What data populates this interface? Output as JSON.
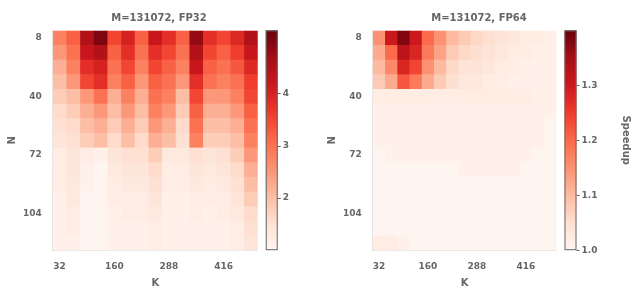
{
  "chart_data": [
    {
      "type": "heatmap",
      "title": "M=131072, FP32",
      "xlabel": "K",
      "ylabel": "N",
      "x": [
        32,
        64,
        96,
        128,
        160,
        192,
        224,
        256,
        288,
        320,
        352,
        384,
        416,
        448,
        480
      ],
      "y": [
        8,
        16,
        24,
        32,
        40,
        48,
        56,
        64,
        72,
        80,
        88,
        96,
        104,
        112,
        120
      ],
      "values": [
        [
          2.8,
          3.2,
          4.5,
          5.0,
          3.5,
          4.0,
          3.2,
          4.2,
          3.8,
          3.2,
          4.8,
          3.8,
          3.5,
          3.9,
          4.5
        ],
        [
          2.5,
          3.0,
          4.2,
          4.5,
          3.2,
          3.8,
          3.0,
          3.8,
          3.5,
          3.0,
          4.5,
          3.5,
          3.2,
          3.6,
          4.2
        ],
        [
          2.2,
          2.8,
          3.8,
          4.0,
          3.0,
          3.5,
          2.8,
          3.5,
          3.2,
          2.8,
          4.2,
          3.2,
          3.0,
          3.3,
          3.9
        ],
        [
          2.0,
          2.5,
          3.5,
          3.8,
          2.8,
          3.2,
          2.5,
          3.2,
          3.0,
          2.5,
          3.8,
          3.0,
          2.8,
          3.0,
          3.6
        ],
        [
          1.8,
          2.0,
          2.5,
          3.0,
          2.2,
          2.8,
          2.2,
          3.0,
          2.8,
          2.0,
          3.5,
          2.5,
          2.5,
          2.8,
          3.5
        ],
        [
          1.6,
          1.8,
          2.2,
          2.5,
          2.0,
          2.5,
          2.0,
          2.8,
          2.5,
          1.8,
          3.2,
          2.2,
          2.2,
          2.5,
          3.2
        ],
        [
          1.5,
          1.6,
          2.0,
          2.2,
          1.8,
          2.2,
          1.8,
          2.5,
          2.2,
          1.6,
          3.0,
          2.0,
          2.0,
          2.2,
          3.0
        ],
        [
          1.4,
          1.5,
          1.8,
          2.0,
          1.6,
          2.0,
          1.6,
          2.2,
          2.0,
          1.5,
          2.8,
          1.8,
          1.8,
          2.0,
          2.8
        ],
        [
          1.2,
          1.4,
          1.2,
          1.1,
          1.4,
          1.5,
          1.5,
          1.8,
          1.3,
          1.3,
          1.5,
          1.4,
          1.5,
          1.8,
          2.5
        ],
        [
          1.2,
          1.4,
          1.1,
          1.0,
          1.3,
          1.4,
          1.4,
          1.6,
          1.2,
          1.2,
          1.4,
          1.3,
          1.4,
          1.6,
          2.2
        ],
        [
          1.2,
          1.3,
          1.1,
          1.0,
          1.2,
          1.3,
          1.3,
          1.5,
          1.2,
          1.2,
          1.3,
          1.2,
          1.3,
          1.5,
          2.0
        ],
        [
          1.1,
          1.3,
          1.0,
          1.0,
          1.2,
          1.2,
          1.2,
          1.4,
          1.1,
          1.1,
          1.2,
          1.2,
          1.2,
          1.4,
          1.8
        ],
        [
          1.1,
          1.2,
          1.0,
          1.0,
          1.1,
          1.2,
          1.2,
          1.3,
          1.1,
          1.1,
          1.2,
          1.1,
          1.2,
          1.3,
          1.6
        ],
        [
          1.1,
          1.2,
          1.0,
          1.0,
          1.1,
          1.1,
          1.1,
          1.2,
          1.1,
          1.1,
          1.1,
          1.1,
          1.1,
          1.2,
          1.5
        ],
        [
          1.1,
          1.1,
          1.0,
          1.0,
          1.1,
          1.1,
          1.1,
          1.2,
          1.1,
          1.1,
          1.1,
          1.1,
          1.1,
          1.2,
          1.4
        ]
      ],
      "xlim": [
        16,
        496
      ],
      "xticks": [
        32,
        160,
        288,
        416
      ],
      "ylim": [
        124,
        4
      ],
      "yticks": [
        8,
        40,
        72,
        104
      ],
      "color": "Reds",
      "color_range": [
        1.0,
        5.2
      ],
      "color_ticks": [
        2,
        3,
        4
      ],
      "grid": false
    },
    {
      "type": "heatmap",
      "title": "M=131072, FP64",
      "xlabel": "K",
      "ylabel": "N",
      "x": [
        32,
        64,
        96,
        128,
        160,
        192,
        224,
        256,
        288,
        320,
        352,
        384,
        416,
        448,
        480
      ],
      "y": [
        8,
        16,
        24,
        32,
        40,
        48,
        56,
        64,
        72,
        80,
        88,
        96,
        104,
        112,
        120
      ],
      "values": [
        [
          1.15,
          1.3,
          1.38,
          1.3,
          1.2,
          1.15,
          1.1,
          1.08,
          1.06,
          1.05,
          1.04,
          1.03,
          1.02,
          1.02,
          1.01
        ],
        [
          1.12,
          1.2,
          1.32,
          1.28,
          1.18,
          1.13,
          1.08,
          1.06,
          1.05,
          1.04,
          1.03,
          1.02,
          1.02,
          1.01,
          1.01
        ],
        [
          1.1,
          1.16,
          1.28,
          1.24,
          1.15,
          1.1,
          1.06,
          1.04,
          1.04,
          1.03,
          1.02,
          1.02,
          1.01,
          1.01,
          1.01
        ],
        [
          1.08,
          1.12,
          1.22,
          1.18,
          1.12,
          1.08,
          1.05,
          1.03,
          1.03,
          1.02,
          1.02,
          1.01,
          1.01,
          1.01,
          1.01
        ],
        [
          1.02,
          1.02,
          1.02,
          1.02,
          1.02,
          1.02,
          1.02,
          1.02,
          1.02,
          1.02,
          1.02,
          1.02,
          1.02,
          1.01,
          1.01
        ],
        [
          1.01,
          1.01,
          1.01,
          1.01,
          1.01,
          1.01,
          1.01,
          1.01,
          1.01,
          1.01,
          1.01,
          1.01,
          1.01,
          1.01,
          1.01
        ],
        [
          1.01,
          1.01,
          1.01,
          1.01,
          1.01,
          1.01,
          1.01,
          1.01,
          1.01,
          1.01,
          1.01,
          1.01,
          1.01,
          1.01,
          1.0
        ],
        [
          1.01,
          1.01,
          1.01,
          1.01,
          1.01,
          1.01,
          1.01,
          1.01,
          1.01,
          1.01,
          1.01,
          1.01,
          1.01,
          1.01,
          1.0
        ],
        [
          1.0,
          1.01,
          1.01,
          1.01,
          1.01,
          1.01,
          1.01,
          1.01,
          1.01,
          1.01,
          1.01,
          1.01,
          1.01,
          1.0,
          1.0
        ],
        [
          1.0,
          1.0,
          1.0,
          1.0,
          1.0,
          1.0,
          1.0,
          1.01,
          1.01,
          1.01,
          1.01,
          1.01,
          1.0,
          1.0,
          1.0
        ],
        [
          1.0,
          1.0,
          1.0,
          1.0,
          1.0,
          1.0,
          1.0,
          1.0,
          1.0,
          1.0,
          1.0,
          1.0,
          1.0,
          1.0,
          1.0
        ],
        [
          1.0,
          1.0,
          1.0,
          1.0,
          1.0,
          1.0,
          1.0,
          1.0,
          1.0,
          1.0,
          1.0,
          1.0,
          1.0,
          1.0,
          1.0
        ],
        [
          1.0,
          1.0,
          1.0,
          1.0,
          1.0,
          1.0,
          1.0,
          1.0,
          1.0,
          1.0,
          1.0,
          1.0,
          1.0,
          1.0,
          1.0
        ],
        [
          1.0,
          1.0,
          1.0,
          1.0,
          1.0,
          1.0,
          1.0,
          1.0,
          1.0,
          1.0,
          1.0,
          1.0,
          1.0,
          1.0,
          1.0
        ],
        [
          1.02,
          1.02,
          1.01,
          1.0,
          1.0,
          1.0,
          1.0,
          1.0,
          1.0,
          1.0,
          1.0,
          1.0,
          1.0,
          1.0,
          1.0
        ]
      ],
      "xlim": [
        16,
        496
      ],
      "xticks": [
        32,
        160,
        288,
        416
      ],
      "ylim": [
        124,
        4
      ],
      "yticks": [
        8,
        40,
        72,
        104
      ],
      "color": "Reds",
      "color_range": [
        1.0,
        1.4
      ],
      "color_ticks": [
        {
          "value": 1.0,
          "label": "1.0"
        },
        1.1,
        1.2,
        1.3
      ],
      "colorbar_label": "Speedup",
      "grid": false
    }
  ]
}
